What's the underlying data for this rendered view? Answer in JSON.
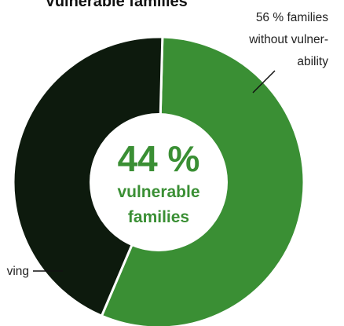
{
  "chart_data": {
    "type": "pie",
    "title": "Vulnerable families",
    "center": {
      "value": "44 %",
      "label_line1": "vulnerable",
      "label_line2": "families"
    },
    "categories": [
      "families without vulnerability",
      "vulnerable families"
    ],
    "values": [
      56,
      44
    ],
    "colors": [
      "#3a8f34",
      "#0d1a0d"
    ],
    "slice_labels": [
      {
        "lines": [
          "56 % families",
          "without vulner-",
          "ability"
        ]
      },
      {
        "lines": [
          "ving"
        ]
      }
    ]
  }
}
